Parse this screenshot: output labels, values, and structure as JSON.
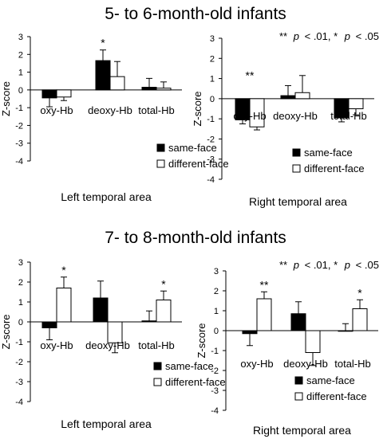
{
  "figure": {
    "section_titles": [
      "5- to 6-month-old infants",
      "7- to 8-month-old infants"
    ],
    "significance_note": {
      "stars_2": "**",
      "p_sym_1": "p",
      "lt_01": "< .01, ",
      "star_1": "*",
      "p_sym_2": "p",
      "lt_05": "< .05"
    }
  },
  "chart_data": [
    {
      "type": "bar",
      "panel": "5-6 months, left",
      "ylabel": "Z-score",
      "xlabel": "Left temporal area",
      "ylim": [
        -4,
        3
      ],
      "yticks": [
        "3",
        "2",
        "1",
        "0",
        "-1",
        "-2",
        "-3",
        "-4"
      ],
      "categories": [
        "oxy-Hb",
        "deoxy-Hb",
        "total-Hb"
      ],
      "series": [
        {
          "name": "same-face",
          "color": "#000000",
          "values": [
            -0.45,
            1.65,
            0.15
          ],
          "errors": [
            0.5,
            0.6,
            0.5
          ]
        },
        {
          "name": "different-face",
          "color": "#ffffff",
          "values": [
            -0.4,
            0.75,
            0.1
          ],
          "errors": [
            0.2,
            0.85,
            0.35
          ]
        }
      ],
      "annotations": [
        {
          "category": 1,
          "series": 0,
          "text": "*"
        }
      ]
    },
    {
      "type": "bar",
      "panel": "5-6 months, right",
      "ylabel": "Z-score",
      "xlabel": "Right temporal area",
      "ylim": [
        -4,
        3
      ],
      "yticks": [
        "3",
        "2",
        "1",
        "0",
        "-1",
        "-2",
        "-3",
        "-4"
      ],
      "categories": [
        "oxy-Hb",
        "deoxy-Hb",
        "total-Hb"
      ],
      "series": [
        {
          "name": "same-face",
          "color": "#000000",
          "values": [
            -1.05,
            0.15,
            -0.95
          ],
          "errors": [
            0.2,
            0.5,
            0.2
          ]
        },
        {
          "name": "different-face",
          "color": "#ffffff",
          "values": [
            -1.4,
            0.3,
            -0.5
          ],
          "errors": [
            0.15,
            0.85,
            0.3
          ]
        }
      ],
      "annotations": [
        {
          "category": 0,
          "series": -1,
          "text": "**"
        }
      ]
    },
    {
      "type": "bar",
      "panel": "7-8 months, left",
      "ylabel": "Z-score",
      "xlabel": "Left temporal area",
      "ylim": [
        -4,
        3
      ],
      "yticks": [
        "3",
        "2",
        "1",
        "0",
        "-1",
        "-2",
        "-3",
        "-4"
      ],
      "categories": [
        "oxy-Hb",
        "deoxy-Hb",
        "total-Hb"
      ],
      "series": [
        {
          "name": "same-face",
          "color": "#000000",
          "values": [
            -0.3,
            1.2,
            0.05
          ],
          "errors": [
            0.6,
            0.85,
            0.5
          ]
        },
        {
          "name": "different-face",
          "color": "#ffffff",
          "values": [
            1.7,
            -1.05,
            1.1
          ],
          "errors": [
            0.55,
            0.5,
            0.45
          ]
        }
      ],
      "annotations": [
        {
          "category": 0,
          "series": 1,
          "text": "*"
        },
        {
          "category": 2,
          "series": 1,
          "text": "*"
        }
      ]
    },
    {
      "type": "bar",
      "panel": "7-8 months, right",
      "ylabel": "Z-score",
      "xlabel": "Right temporal area",
      "ylim": [
        -4,
        3
      ],
      "yticks": [
        "3",
        "2",
        "1",
        "0",
        "-1",
        "-2",
        "-3",
        "-4"
      ],
      "categories": [
        "oxy-Hb",
        "deoxy-Hb",
        "total-Hb"
      ],
      "series": [
        {
          "name": "same-face",
          "color": "#000000",
          "values": [
            -0.15,
            0.85,
            0.0
          ],
          "errors": [
            0.6,
            0.6,
            0.35
          ]
        },
        {
          "name": "different-face",
          "color": "#ffffff",
          "values": [
            1.6,
            -1.1,
            1.1
          ],
          "errors": [
            0.35,
            0.65,
            0.45
          ]
        }
      ],
      "annotations": [
        {
          "category": 0,
          "series": 1,
          "text": "**"
        },
        {
          "category": 2,
          "series": 1,
          "text": "*"
        }
      ]
    }
  ]
}
